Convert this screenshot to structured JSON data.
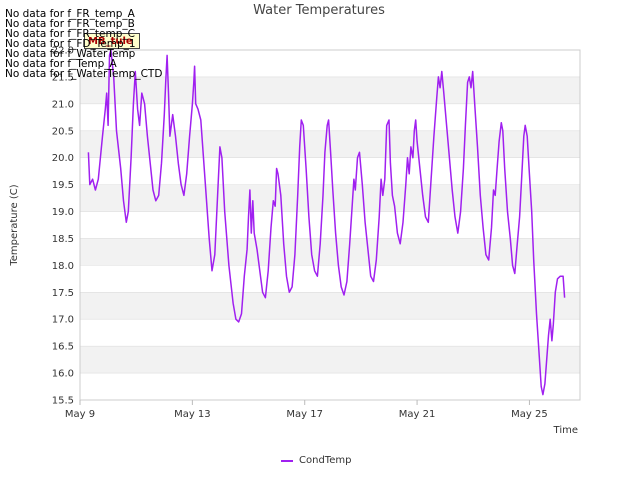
{
  "no_data_messages": [
    "No data for f_FR_temp_A",
    "No data for f_FR_temp_B",
    "No data for f_FR_temp_C",
    "No data for f_FD_Temp_1",
    "No data for f_WaterTemp",
    "No data for f_Temp_A",
    "No data for f_WaterTemp_CTD"
  ],
  "overlay_box_label": "MB_tule",
  "colors": {
    "series": "#a020f0",
    "band": "#f2f2f2",
    "grid": "#dddddd",
    "axis": "#bbbbbb"
  },
  "chart_data": {
    "type": "line",
    "title": "Water Temperatures",
    "xlabel": "Time",
    "ylabel": "Temperature (C)",
    "x_unit": "day of May",
    "xlim": [
      9,
      26.8
    ],
    "ylim": [
      15.5,
      22.0
    ],
    "x_ticks": [
      {
        "value": 9,
        "label": "May 9"
      },
      {
        "value": 13,
        "label": "May 13"
      },
      {
        "value": 17,
        "label": "May 17"
      },
      {
        "value": 21,
        "label": "May 21"
      },
      {
        "value": 25,
        "label": "May 25"
      }
    ],
    "y_ticks": [
      15.5,
      16.0,
      16.5,
      17.0,
      17.5,
      18.0,
      18.5,
      19.0,
      19.5,
      20.0,
      20.5,
      21.0,
      21.5,
      22.0
    ],
    "y_tick_labels": [
      "15.5",
      "16.0",
      "16.5",
      "17.0",
      "17.5",
      "18.0",
      "18.5",
      "19.0",
      "19.5",
      "20.0",
      "20.5",
      "21.0",
      "21.5",
      "22.0"
    ],
    "legend": "bottom-center",
    "series": [
      {
        "name": "CondTemp",
        "points": [
          [
            9.3,
            20.1
          ],
          [
            9.35,
            19.5
          ],
          [
            9.45,
            19.6
          ],
          [
            9.55,
            19.4
          ],
          [
            9.65,
            19.6
          ],
          [
            9.8,
            20.4
          ],
          [
            9.9,
            20.9
          ],
          [
            9.95,
            21.2
          ],
          [
            10.0,
            20.6
          ],
          [
            10.05,
            21.9
          ],
          [
            10.1,
            22.0
          ],
          [
            10.2,
            21.5
          ],
          [
            10.3,
            20.5
          ],
          [
            10.45,
            19.8
          ],
          [
            10.55,
            19.2
          ],
          [
            10.65,
            18.8
          ],
          [
            10.72,
            19.0
          ],
          [
            10.82,
            20.0
          ],
          [
            10.9,
            21.0
          ],
          [
            10.97,
            21.6
          ],
          [
            11.05,
            20.9
          ],
          [
            11.12,
            20.6
          ],
          [
            11.2,
            21.2
          ],
          [
            11.3,
            21.0
          ],
          [
            11.4,
            20.4
          ],
          [
            11.5,
            19.9
          ],
          [
            11.6,
            19.4
          ],
          [
            11.7,
            19.2
          ],
          [
            11.8,
            19.3
          ],
          [
            11.9,
            19.9
          ],
          [
            12.0,
            20.8
          ],
          [
            12.05,
            21.4
          ],
          [
            12.1,
            21.9
          ],
          [
            12.15,
            21.2
          ],
          [
            12.2,
            20.4
          ],
          [
            12.3,
            20.8
          ],
          [
            12.4,
            20.4
          ],
          [
            12.5,
            19.9
          ],
          [
            12.6,
            19.5
          ],
          [
            12.7,
            19.3
          ],
          [
            12.8,
            19.7
          ],
          [
            12.9,
            20.4
          ],
          [
            13.0,
            21.0
          ],
          [
            13.05,
            21.4
          ],
          [
            13.08,
            21.7
          ],
          [
            13.12,
            21.0
          ],
          [
            13.2,
            20.9
          ],
          [
            13.3,
            20.7
          ],
          [
            13.45,
            19.6
          ],
          [
            13.6,
            18.5
          ],
          [
            13.7,
            17.9
          ],
          [
            13.8,
            18.2
          ],
          [
            13.9,
            19.3
          ],
          [
            13.98,
            20.2
          ],
          [
            14.05,
            20.0
          ],
          [
            14.15,
            19.0
          ],
          [
            14.3,
            18.0
          ],
          [
            14.45,
            17.3
          ],
          [
            14.55,
            17.0
          ],
          [
            14.65,
            16.95
          ],
          [
            14.75,
            17.1
          ],
          [
            14.85,
            17.8
          ],
          [
            14.95,
            18.3
          ],
          [
            15.0,
            18.9
          ],
          [
            15.05,
            19.4
          ],
          [
            15.1,
            18.6
          ],
          [
            15.15,
            19.2
          ],
          [
            15.2,
            18.6
          ],
          [
            15.3,
            18.3
          ],
          [
            15.4,
            17.9
          ],
          [
            15.5,
            17.5
          ],
          [
            15.6,
            17.4
          ],
          [
            15.7,
            17.9
          ],
          [
            15.8,
            18.7
          ],
          [
            15.88,
            19.2
          ],
          [
            15.95,
            19.1
          ],
          [
            16.0,
            19.8
          ],
          [
            16.05,
            19.7
          ],
          [
            16.15,
            19.3
          ],
          [
            16.25,
            18.4
          ],
          [
            16.35,
            17.8
          ],
          [
            16.45,
            17.5
          ],
          [
            16.55,
            17.6
          ],
          [
            16.65,
            18.2
          ],
          [
            16.75,
            19.3
          ],
          [
            16.82,
            20.2
          ],
          [
            16.88,
            20.7
          ],
          [
            16.95,
            20.6
          ],
          [
            17.05,
            19.8
          ],
          [
            17.15,
            18.9
          ],
          [
            17.25,
            18.2
          ],
          [
            17.35,
            17.9
          ],
          [
            17.45,
            17.8
          ],
          [
            17.55,
            18.4
          ],
          [
            17.65,
            19.3
          ],
          [
            17.72,
            20.1
          ],
          [
            17.8,
            20.6
          ],
          [
            17.85,
            20.7
          ],
          [
            17.92,
            20.1
          ],
          [
            18.0,
            19.4
          ],
          [
            18.1,
            18.6
          ],
          [
            18.2,
            18.0
          ],
          [
            18.3,
            17.6
          ],
          [
            18.4,
            17.45
          ],
          [
            18.5,
            17.7
          ],
          [
            18.6,
            18.4
          ],
          [
            18.7,
            19.2
          ],
          [
            18.75,
            19.6
          ],
          [
            18.8,
            19.4
          ],
          [
            18.88,
            20.0
          ],
          [
            18.95,
            20.1
          ],
          [
            19.05,
            19.5
          ],
          [
            19.15,
            18.8
          ],
          [
            19.25,
            18.3
          ],
          [
            19.35,
            17.8
          ],
          [
            19.45,
            17.7
          ],
          [
            19.55,
            18.1
          ],
          [
            19.65,
            18.9
          ],
          [
            19.72,
            19.6
          ],
          [
            19.78,
            19.3
          ],
          [
            19.85,
            19.6
          ],
          [
            19.92,
            20.6
          ],
          [
            20.0,
            20.7
          ],
          [
            20.05,
            19.9
          ],
          [
            20.12,
            19.3
          ],
          [
            20.2,
            19.1
          ],
          [
            20.3,
            18.6
          ],
          [
            20.4,
            18.4
          ],
          [
            20.5,
            18.8
          ],
          [
            20.6,
            19.5
          ],
          [
            20.66,
            20.0
          ],
          [
            20.72,
            19.7
          ],
          [
            20.78,
            20.2
          ],
          [
            20.85,
            20.0
          ],
          [
            20.9,
            20.5
          ],
          [
            20.95,
            20.7
          ],
          [
            21.0,
            20.3
          ],
          [
            21.1,
            19.8
          ],
          [
            21.2,
            19.3
          ],
          [
            21.3,
            18.9
          ],
          [
            21.4,
            18.8
          ],
          [
            21.5,
            19.6
          ],
          [
            21.6,
            20.4
          ],
          [
            21.7,
            21.1
          ],
          [
            21.76,
            21.5
          ],
          [
            21.82,
            21.3
          ],
          [
            21.88,
            21.6
          ],
          [
            21.95,
            21.2
          ],
          [
            22.05,
            20.6
          ],
          [
            22.15,
            20.0
          ],
          [
            22.25,
            19.4
          ],
          [
            22.35,
            18.9
          ],
          [
            22.45,
            18.6
          ],
          [
            22.55,
            19.0
          ],
          [
            22.65,
            19.8
          ],
          [
            22.72,
            20.6
          ],
          [
            22.8,
            21.4
          ],
          [
            22.86,
            21.5
          ],
          [
            22.92,
            21.3
          ],
          [
            22.98,
            21.6
          ],
          [
            23.05,
            21.0
          ],
          [
            23.15,
            20.2
          ],
          [
            23.25,
            19.3
          ],
          [
            23.35,
            18.7
          ],
          [
            23.45,
            18.2
          ],
          [
            23.55,
            18.1
          ],
          [
            23.65,
            18.7
          ],
          [
            23.72,
            19.4
          ],
          [
            23.78,
            19.3
          ],
          [
            23.85,
            19.8
          ],
          [
            23.92,
            20.3
          ],
          [
            24.0,
            20.65
          ],
          [
            24.05,
            20.5
          ],
          [
            24.12,
            19.8
          ],
          [
            24.22,
            19.0
          ],
          [
            24.32,
            18.5
          ],
          [
            24.4,
            18.0
          ],
          [
            24.48,
            17.85
          ],
          [
            24.55,
            18.3
          ],
          [
            24.65,
            18.9
          ],
          [
            24.72,
            19.6
          ],
          [
            24.8,
            20.4
          ],
          [
            24.85,
            20.6
          ],
          [
            24.92,
            20.4
          ],
          [
            25.0,
            19.7
          ],
          [
            25.08,
            19.0
          ],
          [
            25.15,
            18.1
          ],
          [
            25.25,
            17.1
          ],
          [
            25.35,
            16.3
          ],
          [
            25.42,
            15.75
          ],
          [
            25.48,
            15.6
          ],
          [
            25.55,
            15.8
          ],
          [
            25.62,
            16.3
          ],
          [
            25.68,
            16.7
          ],
          [
            25.74,
            17.0
          ],
          [
            25.8,
            16.6
          ],
          [
            25.85,
            16.9
          ],
          [
            25.92,
            17.5
          ],
          [
            26.0,
            17.75
          ],
          [
            26.1,
            17.8
          ],
          [
            26.2,
            17.8
          ],
          [
            26.25,
            17.4
          ]
        ]
      }
    ]
  }
}
